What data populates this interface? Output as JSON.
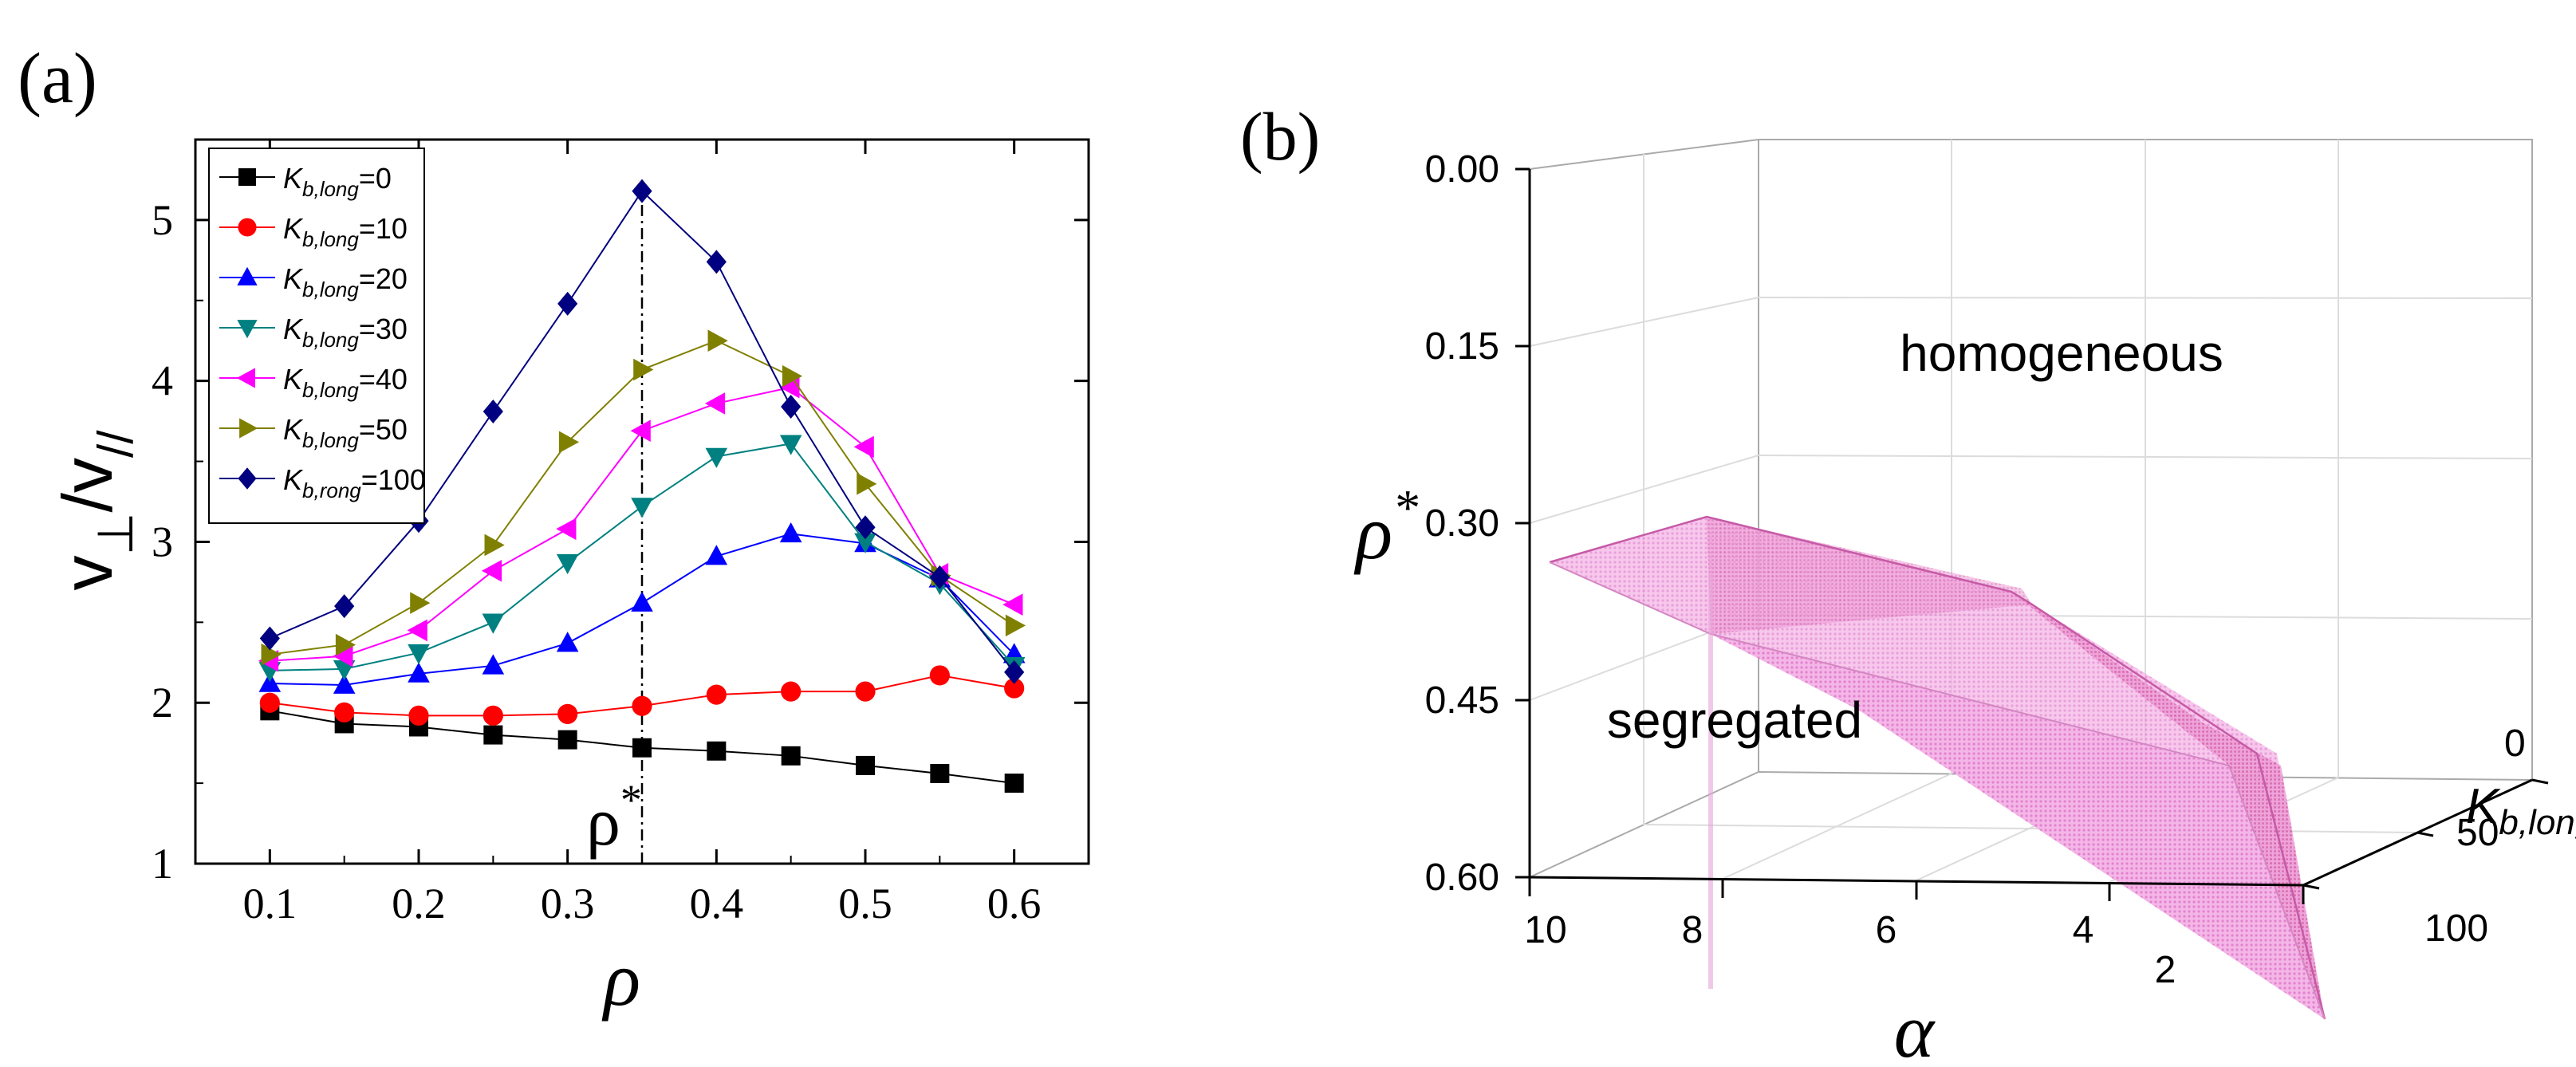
{
  "panel_a": {
    "label": "(a)",
    "chart_data": {
      "type": "line",
      "x": [
        0.1,
        0.15,
        0.2,
        0.25,
        0.3,
        0.35,
        0.4,
        0.45,
        0.5,
        0.55,
        0.6
      ],
      "series": [
        {
          "name_main": "K",
          "name_sub": "b,long",
          "name_value": "=0",
          "color": "#000000",
          "marker": "square",
          "values": [
            1.95,
            1.87,
            1.85,
            1.8,
            1.77,
            1.72,
            1.7,
            1.67,
            1.61,
            1.56,
            1.5
          ]
        },
        {
          "name_main": "K",
          "name_sub": "b,long",
          "name_value": "=10",
          "color": "#ff0000",
          "marker": "circle",
          "values": [
            2.0,
            1.94,
            1.92,
            1.92,
            1.93,
            1.98,
            2.05,
            2.07,
            2.07,
            2.17,
            2.09
          ]
        },
        {
          "name_main": "K",
          "name_sub": "b,long",
          "name_value": "=20",
          "color": "#0000ff",
          "marker": "triangle-up",
          "values": [
            2.12,
            2.11,
            2.18,
            2.23,
            2.37,
            2.62,
            2.91,
            3.05,
            2.99,
            2.77,
            2.3
          ]
        },
        {
          "name_main": "K",
          "name_sub": "b,long",
          "name_value": "=30",
          "color": "#008080",
          "marker": "triangle-down",
          "values": [
            2.2,
            2.21,
            2.31,
            2.5,
            2.87,
            3.22,
            3.53,
            3.61,
            3.0,
            2.74,
            2.23
          ]
        },
        {
          "name_main": "K",
          "name_sub": "b,long",
          "name_value": "=40",
          "color": "#ff00ff",
          "marker": "triangle-left",
          "values": [
            2.26,
            2.29,
            2.45,
            2.82,
            3.08,
            3.69,
            3.86,
            3.96,
            3.59,
            2.8,
            2.61
          ]
        },
        {
          "name_main": "K",
          "name_sub": "b,long",
          "name_value": "=50",
          "color": "#808000",
          "marker": "triangle-right",
          "values": [
            2.3,
            2.36,
            2.62,
            2.98,
            3.62,
            4.07,
            4.25,
            4.03,
            3.36,
            2.79,
            2.48
          ]
        },
        {
          "name_main": "K",
          "name_sub": "b,rong",
          "name_value": "=100",
          "color": "#000080",
          "marker": "diamond",
          "values": [
            2.4,
            2.6,
            3.13,
            3.81,
            4.48,
            5.18,
            4.74,
            3.84,
            3.09,
            2.78,
            2.19
          ]
        }
      ],
      "xlim": [
        0.05,
        0.65
      ],
      "ylim": [
        1,
        5.5
      ],
      "xticks": [
        "0.1",
        "0.2",
        "0.3",
        "0.4",
        "0.5",
        "0.6"
      ],
      "yticks": [
        "1",
        "2",
        "3",
        "4",
        "5"
      ],
      "xlabel": "ρ",
      "ylabel_parts": {
        "v": "v",
        "perp": "⊥",
        "slash": "/",
        "par": "//"
      },
      "annotation": {
        "text": "ρ",
        "sup": "*",
        "x": 0.35
      },
      "legend_position": "top-left"
    }
  },
  "panel_b": {
    "label": "(b)",
    "chart_data": {
      "type": "surface-3d",
      "axis_rho": {
        "ticks": [
          "0.00",
          "0.15",
          "0.30",
          "0.45",
          "0.60"
        ],
        "label": "ρ",
        "label_sup": "*",
        "range": [
          0.0,
          0.6
        ],
        "inverted": true
      },
      "axis_alpha": {
        "ticks": [
          "10",
          "8",
          "6",
          "4",
          "2"
        ],
        "label": "α",
        "range": [
          2,
          10
        ]
      },
      "axis_k": {
        "ticks": [
          "0",
          "50",
          "100"
        ],
        "label_main": "K",
        "label_sub": "b,long",
        "range": [
          0,
          100
        ]
      },
      "regions": {
        "upper": "homogeneous",
        "lower": "segregated"
      },
      "surface_color": "#f3a8e0"
    }
  }
}
